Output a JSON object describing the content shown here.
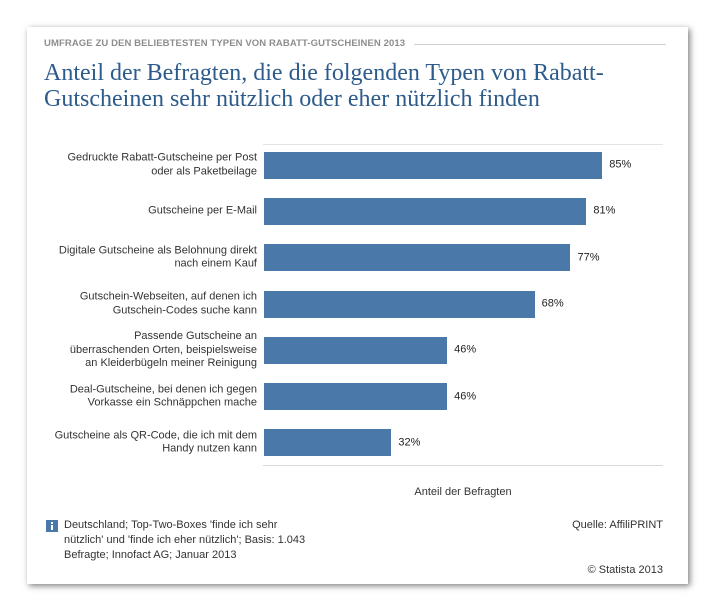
{
  "chart_data": {
    "type": "bar",
    "orientation": "horizontal",
    "subtitle": "UMFRAGE ZU DEN BELIEBTESTEN TYPEN VON RABATT-GUTSCHEINEN 2013",
    "title": "Anteil der Befragten, die die folgenden Typen von Rabatt-Gutscheinen sehr nützlich oder eher nützlich finden",
    "categories": [
      "Gedruckte Rabatt-Gutscheine per Post\noder als Paketbeilage",
      "Gutscheine per E-Mail",
      "Digitale Gutscheine als Belohnung direkt\nnach einem Kauf",
      "Gutschein-Webseiten, auf denen ich\nGutschein-Codes suche kann",
      "Passende Gutscheine an\nüberraschenden Orten, beispielsweise\nan Kleiderbügeln meiner Reinigung",
      "Deal-Gutscheine, bei denen ich gegen\nVorkasse ein Schnäppchen mache",
      "Gutscheine als QR-Code, die ich mit dem\nHandy nutzen kann"
    ],
    "values": [
      85,
      81,
      77,
      68,
      46,
      46,
      32
    ],
    "value_suffix": "%",
    "xlabel": "Anteil der Befragten",
    "ylabel": "",
    "xlim": [
      0,
      100
    ],
    "grid": false,
    "legend": "none"
  },
  "footer": {
    "info_icon": "info-icon",
    "note": "Deutschland; Top-Two-Boxes 'finde ich sehr nützlich' und 'finde ich eher nützlich'; Basis: 1.043 Befragte; Innofact AG; Januar 2013",
    "source": "Quelle: AffiliPRINT",
    "copyright": "© Statista 2013"
  },
  "colors": {
    "bar": "#4a78a9",
    "title": "#2d5b8b",
    "kicker": "#8d8d8d",
    "info_icon": "#4a78a9"
  }
}
